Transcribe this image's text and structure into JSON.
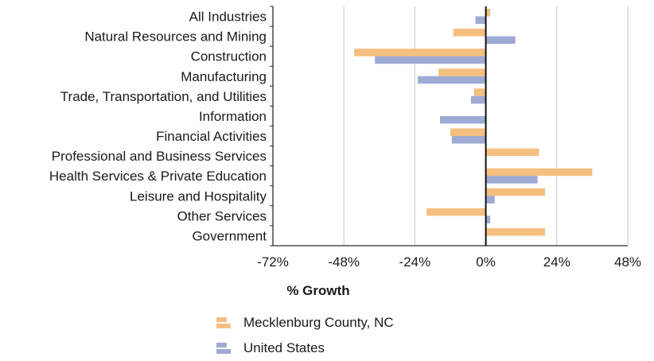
{
  "chart_data": {
    "type": "bar",
    "orientation": "horizontal",
    "categories": [
      "All Industries",
      "Natural Resources and Mining",
      "Construction",
      "Manufacturing",
      "Trade, Transportation, and Utilities",
      "Information",
      "Financial Activities",
      "Professional and Business Services",
      "Health Services & Private Education",
      "Leisure and Hospitality",
      "Other Services",
      "Government"
    ],
    "series": [
      {
        "name": "Mecklenburg County, NC",
        "color": "#f5bf7f",
        "values": [
          1.5,
          -11,
          -44.5,
          -16,
          -4,
          0,
          -12,
          18,
          36,
          20,
          -20,
          20
        ]
      },
      {
        "name": "United States",
        "color": "#9eaad2",
        "values": [
          -3.5,
          10,
          -37.5,
          -23,
          -5,
          -15.5,
          -11.5,
          0,
          17.5,
          3,
          1.5,
          0
        ]
      }
    ],
    "xlabel": "% Growth",
    "xlim": [
      -72,
      48
    ],
    "xticks": [
      -72,
      -48,
      -24,
      0,
      24,
      48
    ],
    "xtick_labels": [
      "-72%",
      "-48%",
      "-24%",
      "0%",
      "24%",
      "48%"
    ],
    "grid": "vertical",
    "legend_position": "bottom"
  }
}
